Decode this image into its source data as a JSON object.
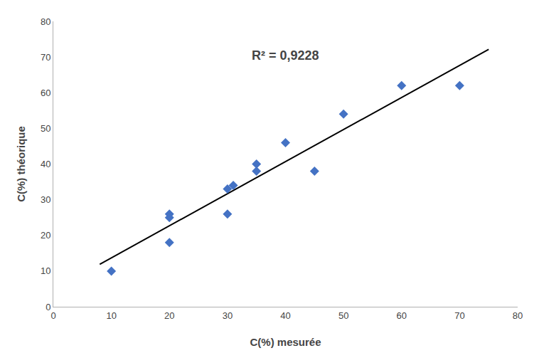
{
  "chart_data": {
    "type": "scatter",
    "xlabel": "C(%) mesurée",
    "ylabel": "C(%) théorique",
    "annotations": [
      {
        "text": "R² = 0,9228"
      }
    ],
    "series": [
      {
        "type": "line",
        "x": [
          8,
          75
        ],
        "values": [
          11.9050674,
          72.1577935
        ],
        "color": "#000000",
        "line_style": "solid"
      },
      {
        "type": "scatter",
        "x": [
          10,
          20,
          20,
          20,
          30,
          30,
          31,
          35,
          35,
          40,
          45,
          50,
          60,
          70
        ],
        "values": [
          10,
          18,
          25,
          26,
          26,
          33,
          34,
          38,
          40,
          46,
          38,
          54,
          62,
          62
        ],
        "color": "#4472C4",
        "marker": "diamond"
      }
    ],
    "xlim": [
      0,
      80
    ],
    "ylim": [
      0,
      80
    ],
    "xticks": [
      0,
      10,
      20,
      30,
      40,
      50,
      60,
      70,
      80
    ],
    "yticks": [
      0,
      10,
      20,
      30,
      40,
      50,
      60,
      70,
      80
    ],
    "grid": false
  }
}
